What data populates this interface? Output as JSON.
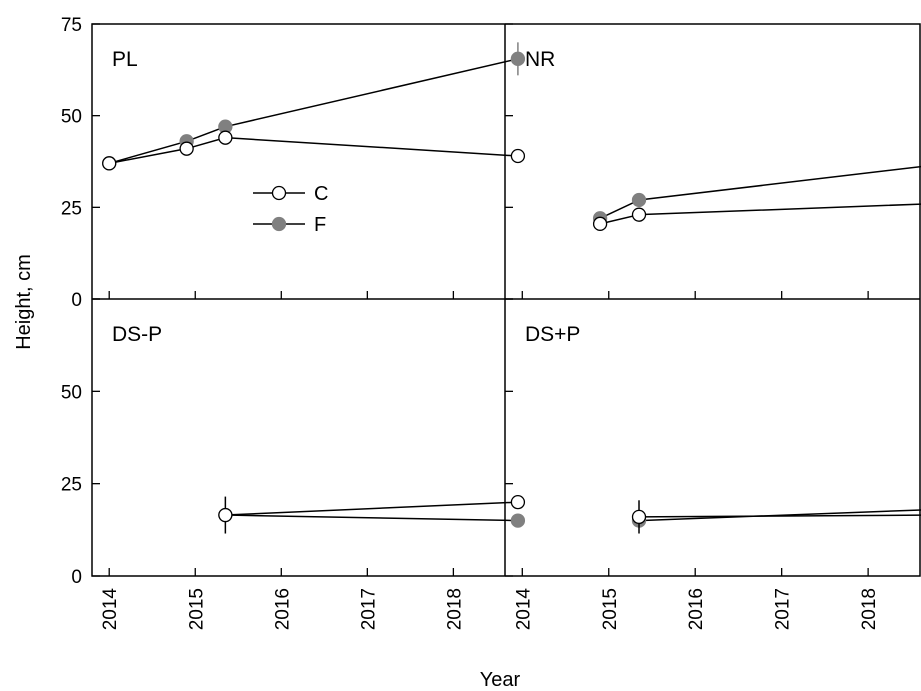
{
  "chart_data": {
    "type": "line",
    "ylabel": "Height, cm",
    "xlabel": "Year",
    "ylim": [
      0,
      75
    ],
    "yticks": [
      "0",
      "25",
      "50",
      "75"
    ],
    "xlim": [
      2013.8,
      2018.6
    ],
    "xticks": [
      "2014",
      "2015",
      "2016",
      "2017",
      "2018"
    ],
    "legend": {
      "placement": "top-left panel, center",
      "entries": [
        {
          "label": "C",
          "marker": "open-circle"
        },
        {
          "label": "F",
          "marker": "filled-circle",
          "color": "#808080"
        }
      ]
    },
    "panels": [
      {
        "label": "PL",
        "series": [
          {
            "name": "C",
            "x": [
              2014.0,
              2014.9,
              2015.35,
              2018.75
            ],
            "values": [
              37,
              41,
              44,
              39
            ],
            "err": [
              0,
              1.5,
              1.5,
              1
            ]
          },
          {
            "name": "F",
            "x": [
              2014.0,
              2014.9,
              2015.35,
              2018.75
            ],
            "values": [
              37,
              43,
              47,
              65.5
            ],
            "err": [
              0,
              1,
              1.5,
              4.5
            ]
          }
        ]
      },
      {
        "label": "NR",
        "series": [
          {
            "name": "C",
            "x": [
              2014.9,
              2015.35,
              2018.75
            ],
            "values": [
              20.5,
              23,
              26
            ],
            "err": [
              1,
              1,
              2
            ]
          },
          {
            "name": "F",
            "x": [
              2014.9,
              2015.35,
              2018.75
            ],
            "values": [
              22,
              27,
              36.5
            ],
            "err": [
              1,
              1,
              6
            ]
          }
        ]
      },
      {
        "label": "DS-P",
        "series": [
          {
            "name": "C",
            "x": [
              2015.35,
              2018.75
            ],
            "values": [
              16.5,
              20
            ],
            "err": [
              5,
              1
            ]
          },
          {
            "name": "F",
            "x": [
              2015.35,
              2018.75
            ],
            "values": [
              16.5,
              15
            ],
            "err": [
              0,
              0.5
            ]
          }
        ]
      },
      {
        "label": "DS+P",
        "series": [
          {
            "name": "C",
            "x": [
              2015.35,
              2018.75
            ],
            "values": [
              16,
              16.5
            ],
            "err": [
              4.5,
              6.5
            ]
          },
          {
            "name": "F",
            "x": [
              2015.35,
              2018.75
            ],
            "values": [
              15,
              18
            ],
            "err": [
              1,
              5
            ]
          }
        ]
      }
    ],
    "colors": {
      "filled": "#808080",
      "open_fill": "#ffffff",
      "stroke": "#000000"
    }
  }
}
